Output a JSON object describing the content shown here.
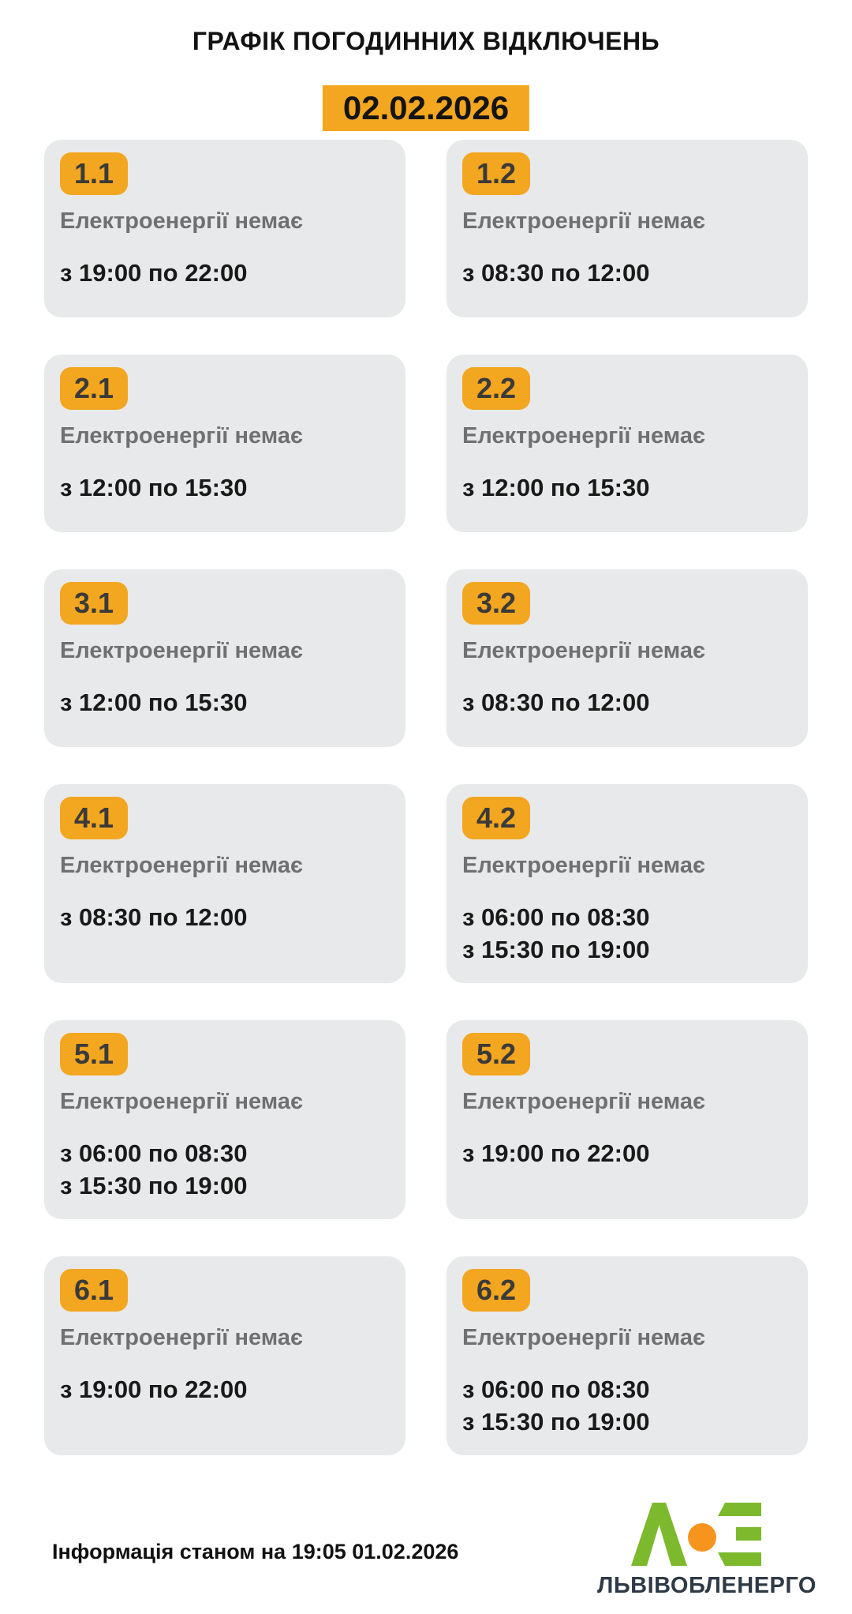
{
  "title": "ГРАФІК ПОГОДИННИХ ВІДКЛЮЧЕНЬ",
  "date": "02.02.2026",
  "cards": [
    {
      "group": "1.1",
      "status": "Електроенергії немає",
      "times": [
        "з 19:00 по 22:00"
      ]
    },
    {
      "group": "1.2",
      "status": "Електроенергії немає",
      "times": [
        "з 08:30 по 12:00"
      ]
    },
    {
      "group": "2.1",
      "status": "Електроенергії немає",
      "times": [
        "з 12:00 по 15:30"
      ]
    },
    {
      "group": "2.2",
      "status": "Електроенергії немає",
      "times": [
        "з 12:00 по 15:30"
      ]
    },
    {
      "group": "3.1",
      "status": "Електроенергії немає",
      "times": [
        "з 12:00 по 15:30"
      ]
    },
    {
      "group": "3.2",
      "status": "Електроенергії немає",
      "times": [
        "з 08:30 по 12:00"
      ]
    },
    {
      "group": "4.1",
      "status": "Електроенергії немає",
      "times": [
        "з 08:30 по 12:00"
      ]
    },
    {
      "group": "4.2",
      "status": "Електроенергії немає",
      "times": [
        "з 06:00 по 08:30",
        "з 15:30 по 19:00"
      ]
    },
    {
      "group": "5.1",
      "status": "Електроенергії немає",
      "times": [
        "з 06:00 по 08:30",
        "з 15:30 по 19:00"
      ]
    },
    {
      "group": "5.2",
      "status": "Електроенергії немає",
      "times": [
        "з 19:00 по 22:00"
      ]
    },
    {
      "group": "6.1",
      "status": "Електроенергії немає",
      "times": [
        "з 19:00 по 22:00"
      ]
    },
    {
      "group": "6.2",
      "status": "Електроенергії немає",
      "times": [
        "з 06:00 по 08:30",
        "з 15:30 по 19:00"
      ]
    }
  ],
  "footer": {
    "info": "Інформація станом на 19:05 01.02.2026",
    "brand": "ЛЬВІВОБЛЕНЕРГО"
  },
  "logo": {
    "icon": "lviv-oblenergo-logo",
    "letters": "ЛОЕ"
  },
  "colors": {
    "accent_orange": "#F3A61F",
    "card_background": "#E8E9EA",
    "status_gray": "#6F7072",
    "text_dark": "#191919",
    "brand_navy": "#2E3A46",
    "logo_green": "#7CB92C",
    "logo_dot_orange": "#F7941E"
  }
}
